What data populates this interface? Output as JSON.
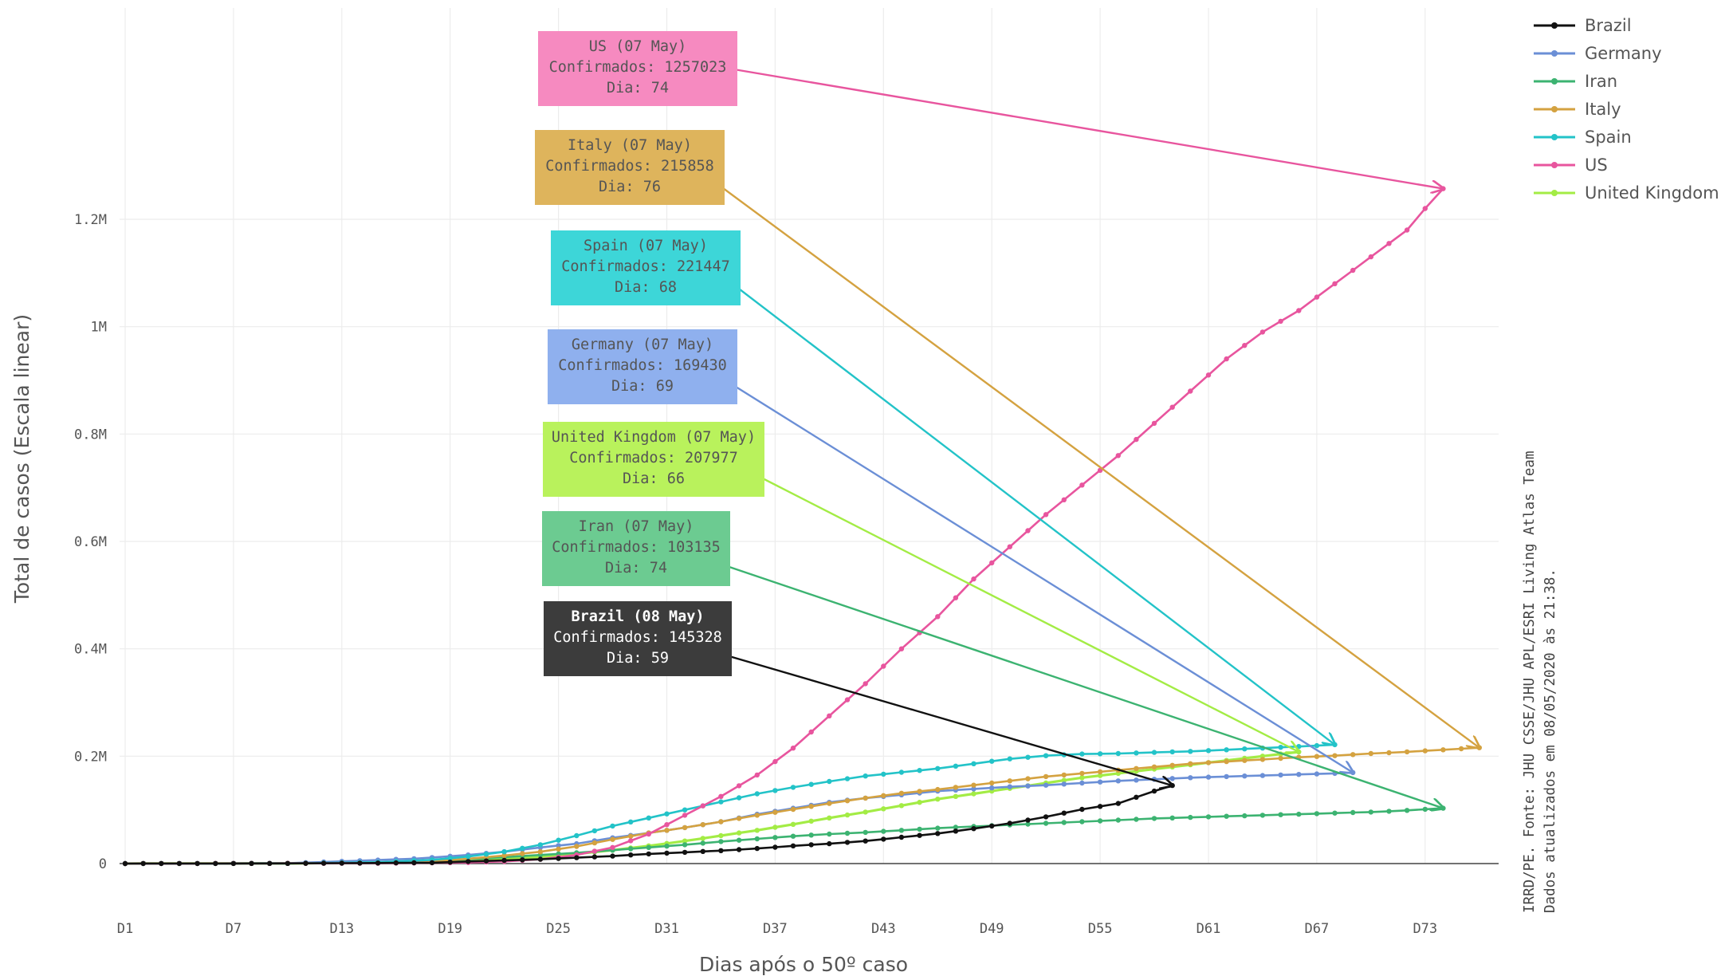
{
  "colors": {
    "Brazil": "#111111",
    "Germany": "#6b8fd6",
    "Iran": "#3cb371",
    "Italy": "#d4a240",
    "Spain": "#23c3c8",
    "US": "#e8559e",
    "United Kingdom": "#a3ec45"
  },
  "source_note": {
    "line1": "IRRD/PE. Fonte: JHU CSSE/JHU APL/ESRI Living Atlas Team",
    "line2": "Dados atualizados em 08/05/2020 às 21:38."
  },
  "chart_data": {
    "type": "line",
    "xlabel": "Dias após o 50º caso",
    "ylabel": "Total de casos (Escala linear)",
    "x_ticks": [
      "D1",
      "D7",
      "D13",
      "D19",
      "D25",
      "D31",
      "D37",
      "D43",
      "D49",
      "D55",
      "D61",
      "D67",
      "D73"
    ],
    "y_ticks": [
      "0",
      "0.2M",
      "0.4M",
      "0.6M",
      "0.8M",
      "1M",
      "1.2M"
    ],
    "xlim": [
      1,
      76
    ],
    "ylim": [
      0,
      1300000
    ],
    "grid": true,
    "legend_position": "top-right",
    "series": [
      {
        "name": "Brazil",
        "days": 59,
        "final": 145328,
        "points": [
          [
            1,
            50
          ],
          [
            10,
            300
          ],
          [
            18,
            1600
          ],
          [
            22,
            6000
          ],
          [
            24,
            8000
          ],
          [
            26,
            11000
          ],
          [
            28,
            14000
          ],
          [
            30,
            18000
          ],
          [
            32,
            21000
          ],
          [
            34,
            24000
          ],
          [
            36,
            28000
          ],
          [
            38,
            33000
          ],
          [
            40,
            37000
          ],
          [
            42,
            42000
          ],
          [
            44,
            49000
          ],
          [
            46,
            56000
          ],
          [
            48,
            65000
          ],
          [
            50,
            75000
          ],
          [
            52,
            87000
          ],
          [
            54,
            101000
          ],
          [
            56,
            112000
          ],
          [
            58,
            135000
          ],
          [
            59,
            145328
          ]
        ]
      },
      {
        "name": "Germany",
        "days": 69,
        "final": 169430,
        "points": [
          [
            1,
            50
          ],
          [
            10,
            600
          ],
          [
            17,
            9000
          ],
          [
            20,
            16000
          ],
          [
            22,
            22000
          ],
          [
            24,
            30000
          ],
          [
            26,
            37000
          ],
          [
            28,
            48000
          ],
          [
            30,
            57000
          ],
          [
            32,
            67000
          ],
          [
            34,
            78000
          ],
          [
            36,
            92000
          ],
          [
            38,
            103000
          ],
          [
            40,
            114000
          ],
          [
            42,
            122000
          ],
          [
            44,
            128000
          ],
          [
            46,
            135000
          ],
          [
            48,
            139000
          ],
          [
            50,
            143000
          ],
          [
            52,
            146000
          ],
          [
            54,
            150000
          ],
          [
            56,
            154000
          ],
          [
            58,
            157000
          ],
          [
            60,
            160000
          ],
          [
            62,
            162000
          ],
          [
            64,
            164000
          ],
          [
            66,
            166000
          ],
          [
            68,
            168000
          ],
          [
            69,
            169430
          ]
        ]
      },
      {
        "name": "Iran",
        "days": 74,
        "final": 103135,
        "points": [
          [
            1,
            50
          ],
          [
            10,
            250
          ],
          [
            17,
            3000
          ],
          [
            20,
            8000
          ],
          [
            22,
            12000
          ],
          [
            24,
            16000
          ],
          [
            26,
            20000
          ],
          [
            28,
            25000
          ],
          [
            30,
            30000
          ],
          [
            32,
            35000
          ],
          [
            34,
            41000
          ],
          [
            36,
            46000
          ],
          [
            38,
            51000
          ],
          [
            40,
            55000
          ],
          [
            42,
            58000
          ],
          [
            44,
            62000
          ],
          [
            46,
            66000
          ],
          [
            48,
            69000
          ],
          [
            50,
            72000
          ],
          [
            52,
            75000
          ],
          [
            54,
            78000
          ],
          [
            56,
            81000
          ],
          [
            58,
            84000
          ],
          [
            60,
            86000
          ],
          [
            62,
            88000
          ],
          [
            64,
            90000
          ],
          [
            66,
            92000
          ],
          [
            68,
            94000
          ],
          [
            70,
            96000
          ],
          [
            72,
            99000
          ],
          [
            74,
            103135
          ]
        ]
      },
      {
        "name": "Italy",
        "days": 76,
        "final": 215858,
        "points": [
          [
            1,
            50
          ],
          [
            10,
            400
          ],
          [
            15,
            1700
          ],
          [
            18,
            4000
          ],
          [
            20,
            9000
          ],
          [
            22,
            15000
          ],
          [
            24,
            22000
          ],
          [
            26,
            32000
          ],
          [
            28,
            45000
          ],
          [
            30,
            57000
          ],
          [
            32,
            67000
          ],
          [
            34,
            78000
          ],
          [
            36,
            90000
          ],
          [
            38,
            101000
          ],
          [
            40,
            112000
          ],
          [
            42,
            122000
          ],
          [
            44,
            131000
          ],
          [
            46,
            138000
          ],
          [
            48,
            146000
          ],
          [
            50,
            154000
          ],
          [
            52,
            162000
          ],
          [
            54,
            168000
          ],
          [
            56,
            174000
          ],
          [
            58,
            180000
          ],
          [
            60,
            186000
          ],
          [
            62,
            190000
          ],
          [
            64,
            194000
          ],
          [
            66,
            198000
          ],
          [
            68,
            201000
          ],
          [
            70,
            205000
          ],
          [
            72,
            208000
          ],
          [
            74,
            212000
          ],
          [
            76,
            215858
          ]
        ]
      },
      {
        "name": "Spain",
        "days": 68,
        "final": 221447,
        "points": [
          [
            1,
            50
          ],
          [
            10,
            350
          ],
          [
            15,
            2500
          ],
          [
            18,
            7000
          ],
          [
            20,
            13000
          ],
          [
            22,
            22000
          ],
          [
            24,
            35000
          ],
          [
            26,
            52000
          ],
          [
            28,
            70000
          ],
          [
            30,
            85000
          ],
          [
            32,
            100000
          ],
          [
            34,
            115000
          ],
          [
            36,
            130000
          ],
          [
            38,
            142000
          ],
          [
            40,
            153000
          ],
          [
            42,
            163000
          ],
          [
            44,
            170000
          ],
          [
            46,
            177000
          ],
          [
            48,
            186000
          ],
          [
            50,
            195000
          ],
          [
            52,
            201000
          ],
          [
            54,
            204000
          ],
          [
            56,
            205000
          ],
          [
            58,
            207000
          ],
          [
            60,
            209000
          ],
          [
            62,
            212000
          ],
          [
            64,
            215000
          ],
          [
            66,
            218000
          ],
          [
            68,
            221447
          ]
        ]
      },
      {
        "name": "US",
        "days": 74,
        "final": 1257023,
        "points": [
          [
            1,
            50
          ],
          [
            15,
            600
          ],
          [
            20,
            2000
          ],
          [
            22,
            4000
          ],
          [
            24,
            8000
          ],
          [
            26,
            16000
          ],
          [
            28,
            30000
          ],
          [
            30,
            55000
          ],
          [
            32,
            90000
          ],
          [
            34,
            125000
          ],
          [
            36,
            165000
          ],
          [
            38,
            215000
          ],
          [
            40,
            275000
          ],
          [
            42,
            335000
          ],
          [
            44,
            400000
          ],
          [
            46,
            460000
          ],
          [
            48,
            530000
          ],
          [
            50,
            590000
          ],
          [
            52,
            650000
          ],
          [
            54,
            705000
          ],
          [
            56,
            760000
          ],
          [
            58,
            820000
          ],
          [
            60,
            880000
          ],
          [
            62,
            940000
          ],
          [
            64,
            990000
          ],
          [
            66,
            1030000
          ],
          [
            68,
            1080000
          ],
          [
            70,
            1130000
          ],
          [
            72,
            1180000
          ],
          [
            73,
            1220000
          ],
          [
            74,
            1257023
          ]
        ]
      },
      {
        "name": "United Kingdom",
        "days": 66,
        "final": 207977,
        "points": [
          [
            1,
            50
          ],
          [
            10,
            300
          ],
          [
            16,
            2500
          ],
          [
            20,
            6000
          ],
          [
            24,
            12000
          ],
          [
            26,
            18000
          ],
          [
            28,
            25000
          ],
          [
            30,
            33000
          ],
          [
            32,
            42000
          ],
          [
            34,
            52000
          ],
          [
            36,
            62000
          ],
          [
            38,
            73000
          ],
          [
            40,
            85000
          ],
          [
            42,
            96000
          ],
          [
            44,
            108000
          ],
          [
            46,
            120000
          ],
          [
            48,
            130000
          ],
          [
            50,
            140000
          ],
          [
            52,
            150000
          ],
          [
            54,
            160000
          ],
          [
            56,
            168000
          ],
          [
            58,
            176000
          ],
          [
            60,
            184000
          ],
          [
            62,
            192000
          ],
          [
            64,
            200000
          ],
          [
            66,
            207977
          ]
        ]
      }
    ],
    "annotations": [
      {
        "series": "US",
        "title": "US (07 May)",
        "line2": "Confirmados: 1257023",
        "line3": "Dia: 74",
        "bg": "#f68ac0",
        "fg": "#555555"
      },
      {
        "series": "Italy",
        "title": "Italy (07 May)",
        "line2": "Confirmados: 215858",
        "line3": "Dia: 76",
        "bg": "#deb45c",
        "fg": "#555555"
      },
      {
        "series": "Spain",
        "title": "Spain (07 May)",
        "line2": "Confirmados: 221447",
        "line3": "Dia: 68",
        "bg": "#3dd6d8",
        "fg": "#555555"
      },
      {
        "series": "Germany",
        "title": "Germany (07 May)",
        "line2": "Confirmados: 169430",
        "line3": "Dia: 69",
        "bg": "#8fb0ee",
        "fg": "#555555"
      },
      {
        "series": "United Kingdom",
        "title": "United Kingdom (07 May)",
        "line2": "Confirmados: 207977",
        "line3": "Dia: 66",
        "bg": "#b9f25c",
        "fg": "#555555"
      },
      {
        "series": "Iran",
        "title": "Iran (07 May)",
        "line2": "Confirmados: 103135",
        "line3": "Dia: 74",
        "bg": "#6ccb91",
        "fg": "#555555"
      },
      {
        "series": "Brazil",
        "title": "Brazil (08 May)",
        "line2": "Confirmados: 145328",
        "line3": "Dia: 59",
        "bg": "#3c3c3c",
        "fg": "#ffffff"
      }
    ]
  }
}
